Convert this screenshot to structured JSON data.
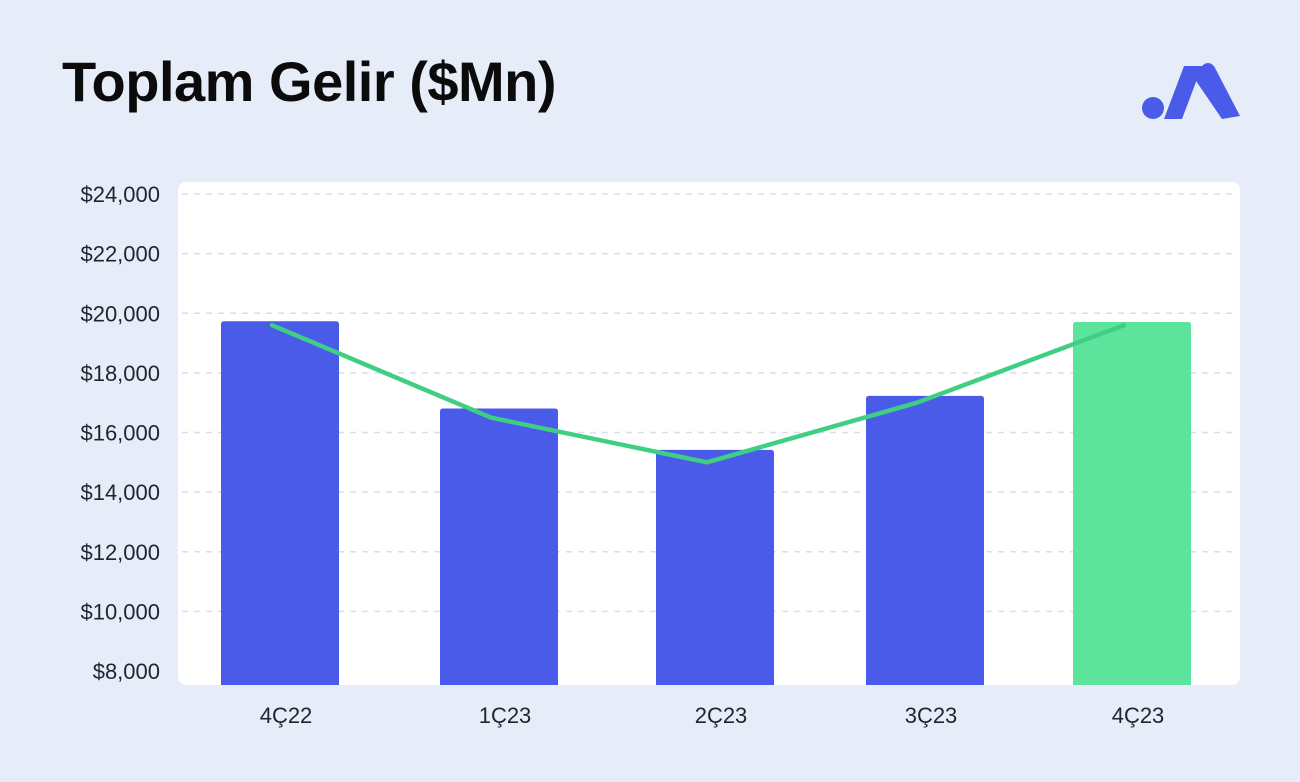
{
  "header": {
    "title": "Toplam Gelir ($Mn)"
  },
  "logo": {
    "icon": "brand-logo-icon",
    "color": "#4a5be9"
  },
  "colors": {
    "bar": "#4a5be9",
    "bar_highlight": "#5ce39c",
    "line": "#3ecf84",
    "grid": "#d9dee8",
    "plot_background": "#ffffff"
  },
  "chart_data": {
    "type": "bar",
    "title": "Toplam Gelir ($Mn)",
    "xlabel": "",
    "ylabel": "",
    "categories": [
      "4Ç22",
      "1Ç23",
      "2Ç23",
      "3Ç23",
      "4Ç23"
    ],
    "series": [
      {
        "type": "bar",
        "values": [
          19732,
          16805,
          15417,
          17227,
          19705
        ],
        "highlight_index": 4
      },
      {
        "type": "line",
        "values": [
          19600,
          16500,
          15000,
          17000,
          19600
        ]
      }
    ],
    "ylim": [
      8000,
      24000
    ],
    "yticks": [
      8000,
      10000,
      12000,
      14000,
      16000,
      18000,
      20000,
      22000,
      24000
    ],
    "ytick_labels": [
      "$8,000",
      "$10,000",
      "$12,000",
      "$14,000",
      "$16,000",
      "$18,000",
      "$20,000",
      "$22,000",
      "$24,000"
    ],
    "grid": true,
    "legend": "none"
  }
}
